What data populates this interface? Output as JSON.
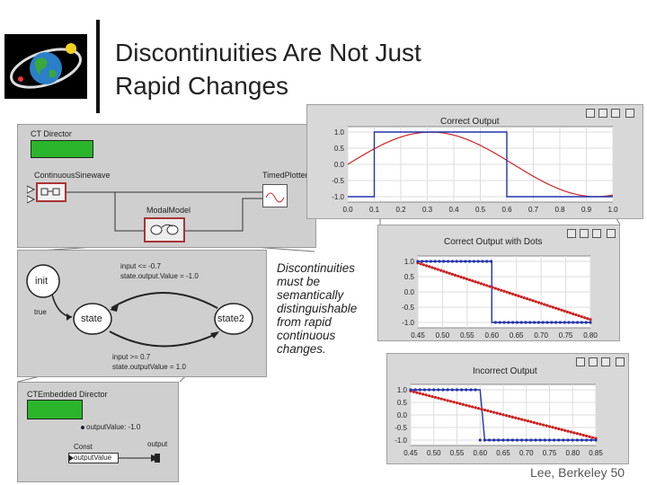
{
  "title": {
    "line1": "Discontinuities Are Not Just",
    "line2": "Rapid Changes"
  },
  "footer": "Lee, Berkeley 50",
  "note": {
    "lines": [
      "Discontinuities",
      "must be",
      "semantically",
      "distinguishable",
      "from rapid",
      "continuous",
      "changes."
    ]
  },
  "logo": {
    "icon": "globe-logo-icon"
  },
  "ct_model": {
    "director_label": "CT Director",
    "sinewave_label": "ContinuousSinewave",
    "plotter_label": "TimedPlotter",
    "modal_label": "ModalModel"
  },
  "fsm": {
    "init_label": "init",
    "state_label": "state",
    "state2_label": "state2",
    "guard1": "input <= -0.7",
    "action1": "state.output.Value = -1.0",
    "guard2": "input >= 0.7",
    "action2": "state.outputValue = 1.0",
    "true_label": "true"
  },
  "embedded": {
    "director_label": "CTEmbedded Director",
    "param_label": "outputValue: -1.0",
    "const_label": "Const",
    "const_value": "outputValue",
    "output_label": "output"
  },
  "plots": {
    "correct": {
      "title": "Correct Output",
      "xticks": [
        "0.0",
        "0.1",
        "0.2",
        "0.3",
        "0.4",
        "0.5",
        "0.6",
        "0.7",
        "0.8",
        "0.9",
        "1.0"
      ],
      "yticks": [
        "1.0",
        "0.5",
        "0.0",
        "-0.5",
        "-1.0"
      ]
    },
    "dots": {
      "title": "Correct Output with Dots",
      "xticks": [
        "0.45",
        "0.50",
        "0.55",
        "0.60",
        "0.65",
        "0.70",
        "0.75",
        "0.80"
      ],
      "yticks": [
        "1.0",
        "0.5",
        "0.0",
        "-0.5",
        "-1.0"
      ]
    },
    "incorrect": {
      "title": "Incorrect Output",
      "xticks": [
        "0.45",
        "0.50",
        "0.55",
        "0.60",
        "0.65",
        "0.70",
        "0.75",
        "0.80",
        "0.85"
      ],
      "yticks": [
        "1.0",
        "0.5",
        "0.0",
        "-0.5",
        "-1.0"
      ]
    }
  },
  "colors": {
    "sine": "#cc2222",
    "step": "#2233aa",
    "green": "#2bb52b"
  }
}
